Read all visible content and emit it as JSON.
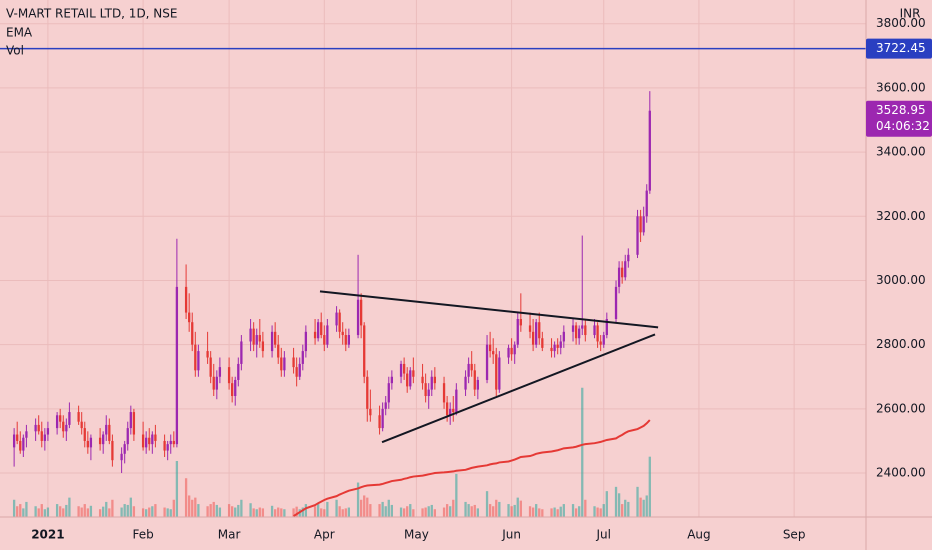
{
  "chart_data": {
    "type": "candlestick",
    "title": "V-MART RETAIL LTD, 1D, NSE",
    "indicators": [
      "EMA",
      "Vol"
    ],
    "currency": "INR",
    "up_color": "#9c27b0",
    "down_color": "#e53935",
    "volume_up_color": "#26a69a",
    "volume_down_color": "#ef5350",
    "grid": true,
    "xlim": [
      -15.6,
      266.4
    ],
    "xticks": [
      {
        "value": 0,
        "label": "2021"
      },
      {
        "value": 31,
        "label": "Feb"
      },
      {
        "value": 59,
        "label": "Mar"
      },
      {
        "value": 90,
        "label": "Apr"
      },
      {
        "value": 120,
        "label": "May"
      },
      {
        "value": 151,
        "label": "Jun"
      },
      {
        "value": 181,
        "label": "Jul"
      },
      {
        "value": 212,
        "label": "Aug"
      },
      {
        "value": 243,
        "label": "Sep"
      }
    ],
    "ylim": [
      2263,
      3874
    ],
    "yticks": [
      {
        "value": 2400,
        "label": "2400.00"
      },
      {
        "value": 2600,
        "label": "2600.00"
      },
      {
        "value": 2800,
        "label": "2800.00"
      },
      {
        "value": 3000,
        "label": "3000.00"
      },
      {
        "value": 3200,
        "label": "3200.00"
      },
      {
        "value": 3400,
        "label": "3400.00"
      },
      {
        "value": 3600,
        "label": "3600.00"
      },
      {
        "value": 3800,
        "label": "3800.00"
      }
    ],
    "y2lim": [
      0,
      1200000
    ],
    "x": [
      -11,
      -10,
      -9,
      -8,
      -7,
      -4,
      -3,
      -2,
      -1,
      0,
      3,
      4,
      5,
      6,
      7,
      10,
      11,
      12,
      13,
      14,
      17,
      18,
      19,
      20,
      21,
      24,
      25,
      26,
      27,
      28,
      31,
      32,
      33,
      34,
      35,
      38,
      39,
      40,
      41,
      42,
      45,
      46,
      47,
      48,
      49,
      52,
      53,
      54,
      55,
      56,
      59,
      60,
      61,
      62,
      63,
      66,
      67,
      68,
      69,
      70,
      73,
      74,
      75,
      76,
      77,
      80,
      81,
      82,
      83,
      84,
      87,
      88,
      89,
      90,
      91,
      94,
      95,
      96,
      97,
      98,
      101,
      102,
      103,
      104,
      105,
      108,
      109,
      110,
      111,
      112,
      115,
      116,
      117,
      118,
      119,
      122,
      123,
      124,
      125,
      126,
      129,
      130,
      131,
      132,
      133,
      136,
      137,
      138,
      139,
      140,
      143,
      144,
      145,
      146,
      147,
      150,
      151,
      152,
      153,
      154,
      157,
      158,
      159,
      160,
      161,
      164,
      165,
      166,
      167,
      168,
      171,
      172,
      173,
      174,
      175,
      178,
      179,
      180,
      181,
      182,
      185,
      186,
      187,
      188,
      189,
      192,
      193,
      194,
      195,
      196
    ],
    "ohlc": [
      [
        2480,
        2540,
        2420,
        2520
      ],
      [
        2520,
        2560,
        2490,
        2500
      ],
      [
        2500,
        2530,
        2460,
        2470
      ],
      [
        2470,
        2520,
        2450,
        2510
      ],
      [
        2510,
        2550,
        2480,
        2530
      ],
      [
        2530,
        2570,
        2500,
        2550
      ],
      [
        2550,
        2580,
        2520,
        2530
      ],
      [
        2530,
        2560,
        2480,
        2500
      ],
      [
        2500,
        2540,
        2470,
        2520
      ],
      [
        2520,
        2560,
        2500,
        2540
      ],
      [
        2540,
        2590,
        2520,
        2580
      ],
      [
        2580,
        2600,
        2540,
        2560
      ],
      [
        2560,
        2580,
        2510,
        2530
      ],
      [
        2530,
        2570,
        2500,
        2550
      ],
      [
        2550,
        2620,
        2540,
        2590
      ],
      [
        2590,
        2610,
        2550,
        2560
      ],
      [
        2560,
        2590,
        2520,
        2540
      ],
      [
        2540,
        2560,
        2480,
        2500
      ],
      [
        2500,
        2530,
        2460,
        2480
      ],
      [
        2480,
        2520,
        2440,
        2510
      ],
      [
        2510,
        2540,
        2470,
        2490
      ],
      [
        2490,
        2530,
        2460,
        2520
      ],
      [
        2520,
        2580,
        2500,
        2550
      ],
      [
        2550,
        2570,
        2490,
        2500
      ],
      [
        2500,
        2520,
        2420,
        2440
      ],
      [
        2440,
        2480,
        2400,
        2460
      ],
      [
        2460,
        2500,
        2430,
        2490
      ],
      [
        2490,
        2560,
        2470,
        2540
      ],
      [
        2540,
        2610,
        2520,
        2590
      ],
      [
        2590,
        2600,
        2500,
        2520
      ],
      [
        2520,
        2560,
        2470,
        2480
      ],
      [
        2480,
        2530,
        2460,
        2510
      ],
      [
        2510,
        2540,
        2470,
        2490
      ],
      [
        2490,
        2530,
        2460,
        2520
      ],
      [
        2520,
        2550,
        2480,
        2500
      ],
      [
        2500,
        2520,
        2450,
        2470
      ],
      [
        2470,
        2500,
        2440,
        2490
      ],
      [
        2490,
        2520,
        2460,
        2500
      ],
      [
        2500,
        2530,
        2480,
        2490
      ],
      [
        2490,
        3130,
        2480,
        2980
      ],
      [
        2980,
        3050,
        2880,
        2900
      ],
      [
        2900,
        2960,
        2840,
        2870
      ],
      [
        2870,
        2900,
        2780,
        2800
      ],
      [
        2800,
        2840,
        2700,
        2720
      ],
      [
        2720,
        2800,
        2700,
        2780
      ],
      [
        2780,
        2840,
        2740,
        2760
      ],
      [
        2760,
        2780,
        2680,
        2700
      ],
      [
        2700,
        2740,
        2640,
        2660
      ],
      [
        2660,
        2720,
        2630,
        2700
      ],
      [
        2700,
        2760,
        2680,
        2730
      ],
      [
        2730,
        2760,
        2660,
        2680
      ],
      [
        2680,
        2700,
        2620,
        2640
      ],
      [
        2640,
        2700,
        2610,
        2690
      ],
      [
        2690,
        2760,
        2670,
        2740
      ],
      [
        2740,
        2830,
        2720,
        2810
      ],
      [
        2810,
        2880,
        2780,
        2850
      ],
      [
        2850,
        2870,
        2780,
        2800
      ],
      [
        2800,
        2850,
        2760,
        2830
      ],
      [
        2830,
        2880,
        2790,
        2810
      ],
      [
        2810,
        2840,
        2760,
        2780
      ],
      [
        2780,
        2860,
        2760,
        2840
      ],
      [
        2840,
        2870,
        2790,
        2800
      ],
      [
        2800,
        2830,
        2740,
        2760
      ],
      [
        2760,
        2790,
        2700,
        2720
      ],
      [
        2720,
        2780,
        2700,
        2760
      ],
      [
        2760,
        2790,
        2710,
        2730
      ],
      [
        2730,
        2760,
        2670,
        2700
      ],
      [
        2700,
        2760,
        2690,
        2740
      ],
      [
        2740,
        2800,
        2720,
        2780
      ],
      [
        2780,
        2860,
        2760,
        2840
      ],
      [
        2840,
        2880,
        2800,
        2820
      ],
      [
        2820,
        2880,
        2810,
        2870
      ],
      [
        2870,
        2900,
        2820,
        2830
      ],
      [
        2830,
        2860,
        2780,
        2800
      ],
      [
        2800,
        2880,
        2790,
        2860
      ],
      [
        2860,
        2920,
        2840,
        2900
      ],
      [
        2900,
        2910,
        2820,
        2840
      ],
      [
        2840,
        2870,
        2800,
        2830
      ],
      [
        2830,
        2850,
        2780,
        2800
      ],
      [
        2800,
        2850,
        2790,
        2830
      ],
      [
        2830,
        3080,
        2820,
        2940
      ],
      [
        2940,
        2960,
        2820,
        2860
      ],
      [
        2860,
        2870,
        2680,
        2700
      ],
      [
        2700,
        2720,
        2560,
        2600
      ],
      [
        2600,
        2660,
        2560,
        2580
      ],
      [
        2580,
        2610,
        2520,
        2540
      ],
      [
        2540,
        2620,
        2530,
        2600
      ],
      [
        2600,
        2640,
        2580,
        2620
      ],
      [
        2620,
        2700,
        2600,
        2680
      ],
      [
        2680,
        2720,
        2660,
        2700
      ],
      [
        2700,
        2750,
        2680,
        2740
      ],
      [
        2740,
        2760,
        2690,
        2710
      ],
      [
        2710,
        2730,
        2650,
        2670
      ],
      [
        2670,
        2730,
        2660,
        2720
      ],
      [
        2720,
        2760,
        2680,
        2700
      ],
      [
        2700,
        2740,
        2660,
        2680
      ],
      [
        2680,
        2710,
        2620,
        2640
      ],
      [
        2640,
        2680,
        2600,
        2660
      ],
      [
        2660,
        2720,
        2640,
        2700
      ],
      [
        2700,
        2730,
        2660,
        2680
      ],
      [
        2680,
        2700,
        2600,
        2620
      ],
      [
        2620,
        2640,
        2560,
        2580
      ],
      [
        2580,
        2620,
        2550,
        2600
      ],
      [
        2600,
        2640,
        2560,
        2590
      ],
      [
        2590,
        2680,
        2580,
        2660
      ],
      [
        2660,
        2720,
        2640,
        2700
      ],
      [
        2700,
        2760,
        2680,
        2740
      ],
      [
        2740,
        2780,
        2700,
        2720
      ],
      [
        2720,
        2740,
        2640,
        2660
      ],
      [
        2660,
        2700,
        2630,
        2690
      ],
      [
        2690,
        2830,
        2680,
        2800
      ],
      [
        2800,
        2840,
        2760,
        2780
      ],
      [
        2780,
        2820,
        2740,
        2770
      ],
      [
        2770,
        2790,
        2640,
        2660
      ],
      [
        2660,
        2780,
        2650,
        2760
      ],
      [
        2760,
        2800,
        2740,
        2790
      ],
      [
        2790,
        2820,
        2750,
        2770
      ],
      [
        2770,
        2810,
        2740,
        2800
      ],
      [
        2800,
        2900,
        2790,
        2880
      ],
      [
        2880,
        2960,
        2840,
        2860
      ],
      [
        2860,
        2900,
        2820,
        2840
      ],
      [
        2840,
        2880,
        2780,
        2800
      ],
      [
        2800,
        2880,
        2790,
        2870
      ],
      [
        2870,
        2900,
        2800,
        2820
      ],
      [
        2820,
        2840,
        2780,
        2790
      ],
      [
        2790,
        2820,
        2760,
        2780
      ],
      [
        2780,
        2810,
        2760,
        2800
      ],
      [
        2800,
        2820,
        2770,
        2790
      ],
      [
        2790,
        2830,
        2770,
        2810
      ],
      [
        2810,
        2860,
        2790,
        2840
      ],
      [
        2840,
        2880,
        2810,
        2860
      ],
      [
        2860,
        2870,
        2800,
        2820
      ],
      [
        2820,
        2860,
        2800,
        2850
      ],
      [
        2850,
        3140,
        2830,
        2860
      ],
      [
        2860,
        2880,
        2810,
        2830
      ],
      [
        2830,
        2880,
        2820,
        2860
      ],
      [
        2860,
        2870,
        2790,
        2810
      ],
      [
        2810,
        2830,
        2780,
        2800
      ],
      [
        2800,
        2840,
        2790,
        2830
      ],
      [
        2830,
        2900,
        2820,
        2880
      ],
      [
        2880,
        3000,
        2870,
        2980
      ],
      [
        2980,
        3060,
        2960,
        3040
      ],
      [
        3040,
        3060,
        2990,
        3010
      ],
      [
        3010,
        3080,
        3000,
        3060
      ],
      [
        3060,
        3100,
        3040,
        3080
      ],
      [
        3080,
        3220,
        3070,
        3200
      ],
      [
        3200,
        3220,
        3120,
        3150
      ],
      [
        3150,
        3230,
        3140,
        3200
      ],
      [
        3200,
        3300,
        3180,
        3280
      ],
      [
        3280,
        3590,
        3270,
        3528.95
      ]
    ],
    "volume": [
      40000,
      25000,
      30000,
      20000,
      35000,
      25000,
      20000,
      30000,
      18000,
      22000,
      30000,
      25000,
      20000,
      28000,
      45000,
      25000,
      22000,
      30000,
      20000,
      26000,
      18000,
      24000,
      35000,
      20000,
      40000,
      22000,
      30000,
      28000,
      45000,
      25000,
      20000,
      18000,
      22000,
      25000,
      30000,
      22000,
      20000,
      18000,
      40000,
      130000,
      90000,
      50000,
      40000,
      45000,
      30000,
      25000,
      30000,
      35000,
      28000,
      22000,
      30000,
      25000,
      22000,
      28000,
      40000,
      32000,
      20000,
      18000,
      22000,
      20000,
      26000,
      18000,
      22000,
      20000,
      18000,
      20000,
      24000,
      18000,
      22000,
      30000,
      25000,
      30000,
      20000,
      18000,
      35000,
      40000,
      25000,
      18000,
      20000,
      22000,
      80000,
      40000,
      50000,
      45000,
      30000,
      30000,
      35000,
      25000,
      40000,
      28000,
      22000,
      20000,
      25000,
      30000,
      18000,
      20000,
      22000,
      25000,
      28000,
      18000,
      22000,
      30000,
      25000,
      40000,
      100000,
      35000,
      30000,
      25000,
      28000,
      20000,
      60000,
      30000,
      25000,
      40000,
      35000,
      30000,
      25000,
      28000,
      45000,
      38000,
      25000,
      22000,
      30000,
      20000,
      18000,
      20000,
      22000,
      18000,
      24000,
      30000,
      30000,
      20000,
      25000,
      300000,
      40000,
      25000,
      22000,
      20000,
      30000,
      60000,
      70000,
      55000,
      30000,
      40000,
      35000,
      70000,
      45000,
      40000,
      50000,
      140000
    ],
    "ema": {
      "name": "EMA",
      "color": "#e53935",
      "values": [
        null,
        null,
        null,
        null,
        null,
        null,
        null,
        null,
        null,
        null,
        null,
        null,
        null,
        null,
        null,
        null,
        null,
        null,
        null,
        null,
        null,
        null,
        null,
        null,
        null,
        null,
        null,
        null,
        null,
        null,
        null,
        null,
        null,
        null,
        null,
        null,
        null,
        null,
        null,
        null,
        null,
        null,
        null,
        null,
        null,
        null,
        null,
        null,
        null,
        null,
        null,
        null,
        null,
        null,
        null,
        null,
        null,
        null,
        null,
        null,
        null,
        null,
        null,
        null,
        null,
        2266,
        2272,
        2278,
        2284,
        2290,
        2300,
        2306,
        2311,
        2316,
        2320,
        2328,
        2333,
        2337,
        2341,
        2345,
        2352,
        2356,
        2359,
        2361,
        2362,
        2364,
        2366,
        2369,
        2372,
        2375,
        2379,
        2382,
        2384,
        2387,
        2389,
        2392,
        2394,
        2396,
        2398,
        2400,
        2402,
        2403,
        2404,
        2405,
        2407,
        2410,
        2413,
        2416,
        2418,
        2420,
        2424,
        2427,
        2429,
        2430,
        2433,
        2436,
        2439,
        2442,
        2446,
        2450,
        2453,
        2456,
        2460,
        2462,
        2464,
        2467,
        2469,
        2471,
        2474,
        2477,
        2480,
        2482,
        2485,
        2488,
        2490,
        2493,
        2495,
        2497,
        2500,
        2503,
        2508,
        2514,
        2519,
        2525,
        2530,
        2537,
        2542,
        2547,
        2555,
        2565
      ]
    },
    "horizontal_line": {
      "value": 3722.45,
      "label": "3722.45",
      "color": "#2a3fc1"
    },
    "last_price": {
      "value": 3528.95,
      "label": "3528.95",
      "countdown": "04:06:32",
      "color": "#9c27b0"
    },
    "trendlines": [
      {
        "points": [
          [
            88.6,
            2966
          ],
          [
            198.7,
            2854
          ]
        ]
      },
      {
        "points": [
          [
            108.8,
            2496
          ],
          [
            197.7,
            2832
          ]
        ]
      }
    ]
  }
}
